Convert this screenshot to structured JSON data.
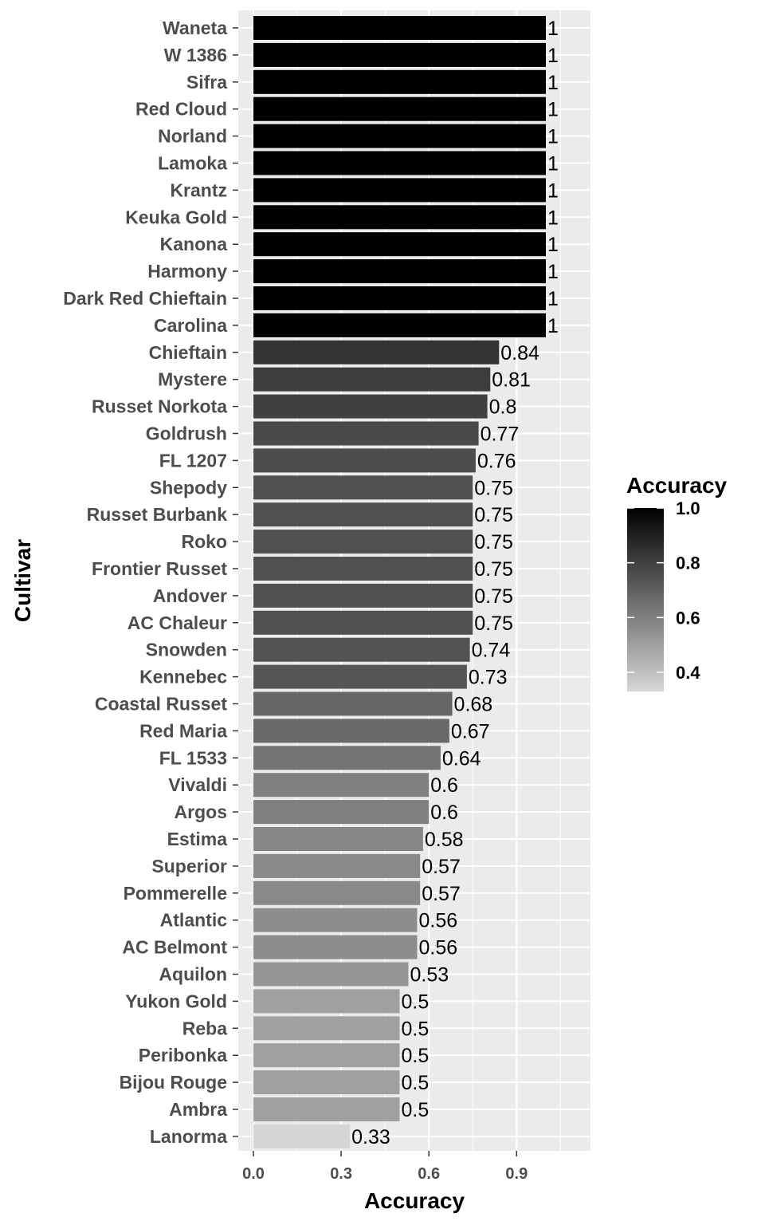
{
  "chart_data": {
    "type": "bar",
    "orientation": "horizontal",
    "xlabel": "Accuracy",
    "ylabel": "Cultivar",
    "xlim": [
      0,
      1.15
    ],
    "x_ticks": [
      "0.0",
      "0.3",
      "0.6",
      "0.9"
    ],
    "grid": true,
    "categories": [
      "Waneta",
      "W 1386",
      "Sifra",
      "Red Cloud",
      "Norland",
      "Lamoka",
      "Krantz",
      "Keuka Gold",
      "Kanona",
      "Harmony",
      "Dark Red Chieftain",
      "Carolina",
      "Chieftain",
      "Mystere",
      "Russet Norkota",
      "Goldrush",
      "FL 1207",
      "Shepody",
      "Russet Burbank",
      "Roko",
      "Frontier Russet",
      "Andover",
      "AC Chaleur",
      "Snowden",
      "Kennebec",
      "Coastal Russet",
      "Red Maria",
      "FL 1533",
      "Vivaldi",
      "Argos",
      "Estima",
      "Superior",
      "Pommerelle",
      "Atlantic",
      "AC Belmont",
      "Aquilon",
      "Yukon Gold",
      "Reba",
      "Peribonka",
      "Bijou Rouge",
      "Ambra",
      "Lanorma"
    ],
    "values": [
      1,
      1,
      1,
      1,
      1,
      1,
      1,
      1,
      1,
      1,
      1,
      1,
      0.84,
      0.81,
      0.8,
      0.77,
      0.76,
      0.75,
      0.75,
      0.75,
      0.75,
      0.75,
      0.75,
      0.74,
      0.73,
      0.68,
      0.67,
      0.64,
      0.6,
      0.6,
      0.58,
      0.57,
      0.57,
      0.56,
      0.56,
      0.53,
      0.5,
      0.5,
      0.5,
      0.5,
      0.5,
      0.33
    ],
    "labels": [
      "1",
      "1",
      "1",
      "1",
      "1",
      "1",
      "1",
      "1",
      "1",
      "1",
      "1",
      "1",
      "0.84",
      "0.81",
      "0.8",
      "0.77",
      "0.76",
      "0.75",
      "0.75",
      "0.75",
      "0.75",
      "0.75",
      "0.75",
      "0.74",
      "0.73",
      "0.68",
      "0.67",
      "0.64",
      "0.6",
      "0.6",
      "0.58",
      "0.57",
      "0.57",
      "0.56",
      "0.56",
      "0.53",
      "0.5",
      "0.5",
      "0.5",
      "0.5",
      "0.5",
      "0.33"
    ],
    "legend": {
      "title": "Accuracy",
      "position": "right",
      "ticks": [
        "1.0",
        "0.8",
        "0.6",
        "0.4"
      ],
      "tick_values": [
        1.0,
        0.8,
        0.6,
        0.4
      ],
      "range": [
        0.33,
        1.0
      ],
      "color_low": "#d6d6d6",
      "color_high": "#000000"
    },
    "colors": {
      "panel_background": "#ebebeb",
      "gridline": "#ffffff"
    }
  }
}
